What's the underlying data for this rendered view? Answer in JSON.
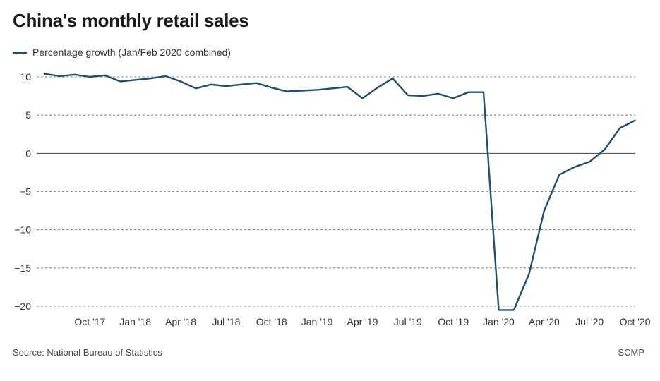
{
  "chart_data": {
    "type": "line",
    "title": "China's monthly retail sales",
    "legend": "Percentage growth (Jan/Feb 2020 combined)",
    "source": "Source: National Bureau of Statistics",
    "credit": "SCMP",
    "ylim": [
      -20,
      10
    ],
    "yticks": [
      10,
      5,
      0,
      -5,
      -10,
      -15,
      -20
    ],
    "ytick_labels": [
      "10",
      "5",
      "0",
      "−5",
      "−10",
      "−15",
      "−20"
    ],
    "xtick_labels": [
      "Oct '17",
      "Jan '18",
      "Apr '18",
      "Jul '18",
      "Oct '18",
      "Jan '19",
      "Apr '19",
      "Jul '19",
      "Oct '19",
      "Jan '20",
      "Apr '20",
      "Jul '20",
      "Oct '20"
    ],
    "xtick_index": [
      3,
      6,
      9,
      12,
      15,
      18,
      21,
      24,
      27,
      30,
      33,
      36,
      39
    ],
    "grid": "dashed horizontal",
    "series": [
      {
        "name": "Percentage growth (Jan/Feb 2020 combined)",
        "color": "#1f4e6e",
        "labels": [
          "Jul '17",
          "Aug '17",
          "Sep '17",
          "Oct '17",
          "Nov '17",
          "Dec '17",
          "Jan '18",
          "Feb '18",
          "Mar '18",
          "Apr '18",
          "May '18",
          "Jun '18",
          "Jul '18",
          "Aug '18",
          "Sep '18",
          "Oct '18",
          "Nov '18",
          "Dec '18",
          "Jan '19",
          "Feb '19",
          "Mar '19",
          "Apr '19",
          "May '19",
          "Jun '19",
          "Jul '19",
          "Aug '19",
          "Sep '19",
          "Oct '19",
          "Nov '19",
          "Dec '19",
          "Jan '20",
          "Feb '20",
          "Mar '20",
          "Apr '20",
          "May '20",
          "Jun '20",
          "Jul '20",
          "Aug '20",
          "Sep '20",
          "Oct '20"
        ],
        "values": [
          10.4,
          10.1,
          10.3,
          10.0,
          10.2,
          9.4,
          9.6,
          9.8,
          10.1,
          9.4,
          8.5,
          9.0,
          8.8,
          9.0,
          9.2,
          8.6,
          8.1,
          8.2,
          8.3,
          8.5,
          8.7,
          7.2,
          8.6,
          9.8,
          7.6,
          7.5,
          7.8,
          7.2,
          8.0,
          8.0,
          -20.5,
          -20.5,
          -15.8,
          -7.5,
          -2.8,
          -1.8,
          -1.1,
          0.5,
          3.3,
          4.3
        ]
      }
    ]
  }
}
